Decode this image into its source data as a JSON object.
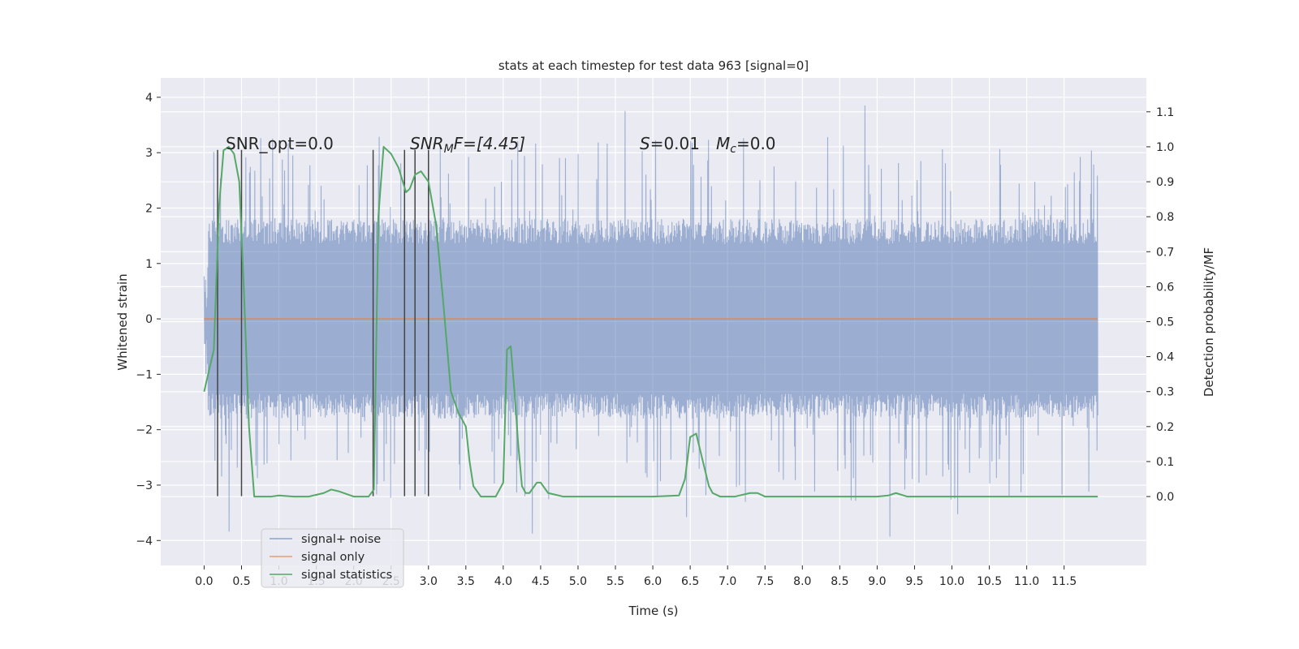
{
  "chart_data": {
    "type": "line",
    "title": "stats at each timestep for test data 963 [signal=0]",
    "xlabel": "Time (s)",
    "ylabel": "Whitened strain",
    "y2label": "Detection probability/MF",
    "xlim": [
      -0.58,
      12.6
    ],
    "ylim": [
      -4.45,
      4.35
    ],
    "y2lim": [
      -0.197,
      1.197
    ],
    "xticks": [
      0.0,
      0.5,
      1.0,
      1.5,
      2.0,
      2.5,
      3.0,
      3.5,
      4.0,
      4.5,
      5.0,
      5.5,
      6.0,
      6.5,
      7.0,
      7.5,
      8.0,
      8.5,
      9.0,
      9.5,
      10.0,
      10.5,
      11.0,
      11.5
    ],
    "xtick_labels": [
      "0.0",
      "0.5",
      "1.0",
      "1.5",
      "2.0",
      "2.5",
      "3.0",
      "3.5",
      "4.0",
      "4.5",
      "5.0",
      "5.5",
      "6.0",
      "6.5",
      "7.0",
      "7.5",
      "8.0",
      "8.5",
      "9.0",
      "9.5",
      "10.0",
      "10.5",
      "11.0",
      "11.5"
    ],
    "yticks": [
      -4,
      -3,
      -2,
      -1,
      0,
      1,
      2,
      3,
      4
    ],
    "ytick_labels": [
      "−4",
      "−3",
      "−2",
      "−1",
      "0",
      "1",
      "2",
      "3",
      "4"
    ],
    "y2ticks": [
      0.0,
      0.1,
      0.2,
      0.3,
      0.4,
      0.5,
      0.6,
      0.7,
      0.8,
      0.9,
      1.0,
      1.1
    ],
    "y2tick_labels": [
      "0.0",
      "0.1",
      "0.2",
      "0.3",
      "0.4",
      "0.5",
      "0.6",
      "0.7",
      "0.8",
      "0.9",
      "1.0",
      "1.1"
    ],
    "grid": true,
    "legend_position": "lower-left",
    "annotations": {
      "snr_opt": "SNR_opt=0.0",
      "snr_mf_main": "SNR",
      "snr_mf_sub": "M",
      "snr_mf_rest": "F=[4.45]",
      "s_main": "S",
      "s_rest": "=0.01",
      "mc_main": "M",
      "mc_sub": "c",
      "mc_rest": "=0.0"
    },
    "series": [
      {
        "name": "signal+ noise",
        "color": "#4c72b0",
        "axis": "left",
        "note": "dense whitened noise, t from 0 to ~11.95 s, mostly within ±1.8, peaks to about ±3.9",
        "envelope": {
          "t_start": 0.0,
          "t_end": 11.95,
          "typical_abs": 1.8,
          "max_abs": 3.95
        }
      },
      {
        "name": "signal only",
        "color": "#dd8452",
        "axis": "left",
        "x": [
          0.0,
          11.95
        ],
        "y": [
          0.0,
          0.0
        ]
      },
      {
        "name": "signal statistics",
        "color": "#55a868",
        "axis": "right",
        "x": [
          0.0,
          0.13,
          0.2,
          0.26,
          0.33,
          0.4,
          0.47,
          0.53,
          0.6,
          0.67,
          0.72,
          0.8,
          0.9,
          1.0,
          1.2,
          1.4,
          1.6,
          1.7,
          1.8,
          2.0,
          2.2,
          2.27,
          2.33,
          2.4,
          2.5,
          2.6,
          2.7,
          2.75,
          2.82,
          2.9,
          3.0,
          3.1,
          3.2,
          3.3,
          3.4,
          3.5,
          3.55,
          3.6,
          3.7,
          3.8,
          3.9,
          4.0,
          4.05,
          4.1,
          4.15,
          4.2,
          4.25,
          4.3,
          4.35,
          4.45,
          4.5,
          4.6,
          4.7,
          4.8,
          5.0,
          5.5,
          6.0,
          6.35,
          6.43,
          6.5,
          6.58,
          6.67,
          6.75,
          6.8,
          6.9,
          7.1,
          7.3,
          7.4,
          7.5,
          7.8,
          8.5,
          9.0,
          9.15,
          9.25,
          9.4,
          9.6,
          10.0,
          11.0,
          11.95
        ],
        "y": [
          0.3,
          0.42,
          0.83,
          0.99,
          1.0,
          0.98,
          0.9,
          0.6,
          0.2,
          0.0,
          0.0,
          0.0,
          0.0,
          0.003,
          0.0,
          0.0,
          0.01,
          0.02,
          0.015,
          0.0,
          0.0,
          0.02,
          0.8,
          1.0,
          0.98,
          0.94,
          0.87,
          0.88,
          0.92,
          0.93,
          0.9,
          0.78,
          0.55,
          0.3,
          0.24,
          0.2,
          0.1,
          0.03,
          0.0,
          0.0,
          0.0,
          0.04,
          0.42,
          0.43,
          0.3,
          0.15,
          0.03,
          0.01,
          0.01,
          0.04,
          0.04,
          0.01,
          0.005,
          0.0,
          0.0,
          0.0,
          0.0,
          0.003,
          0.05,
          0.17,
          0.18,
          0.1,
          0.03,
          0.01,
          0.0,
          0.0,
          0.01,
          0.01,
          0.0,
          0.0,
          0.0,
          0.0,
          0.003,
          0.01,
          0.0,
          0.0,
          0.0,
          0.0,
          0.0
        ]
      }
    ],
    "vertical_markers": {
      "color": "#444444",
      "x": [
        0.18,
        0.5,
        2.26,
        2.68,
        2.82,
        3.0
      ],
      "y_from": -3.2,
      "y_to": 3.05
    }
  }
}
